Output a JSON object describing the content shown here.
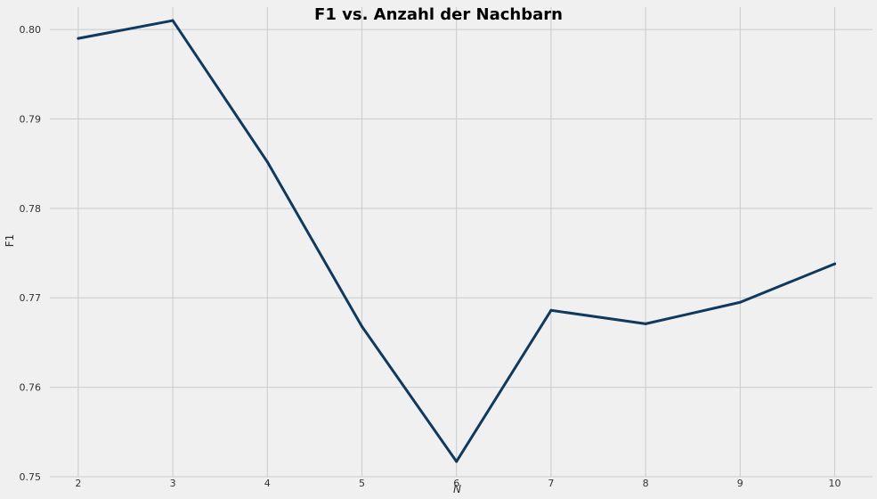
{
  "chart_data": {
    "type": "line",
    "title": "F1 vs. Anzahl der Nachbarn",
    "xlabel": "N",
    "ylabel": "F1",
    "x": [
      2,
      3,
      4,
      5,
      6,
      7,
      8,
      9,
      10
    ],
    "series": [
      {
        "values": [
          0.799,
          0.801,
          0.7852,
          0.7668,
          0.7517,
          0.7686,
          0.7671,
          0.7695,
          0.7738
        ]
      }
    ],
    "xticks": [
      "2",
      "3",
      "4",
      "5",
      "6",
      "7",
      "8",
      "9",
      "10"
    ],
    "yticks": [
      "0.75",
      "0.76",
      "0.77",
      "0.78",
      "0.79",
      "0.80"
    ],
    "xlim": [
      1.7,
      10.4
    ],
    "ylim": [
      0.75,
      0.8025
    ],
    "grid": true,
    "colors": {
      "line": "#0f3a5f",
      "background": "#f0f0f0",
      "grid": "#cbcbcb"
    }
  }
}
